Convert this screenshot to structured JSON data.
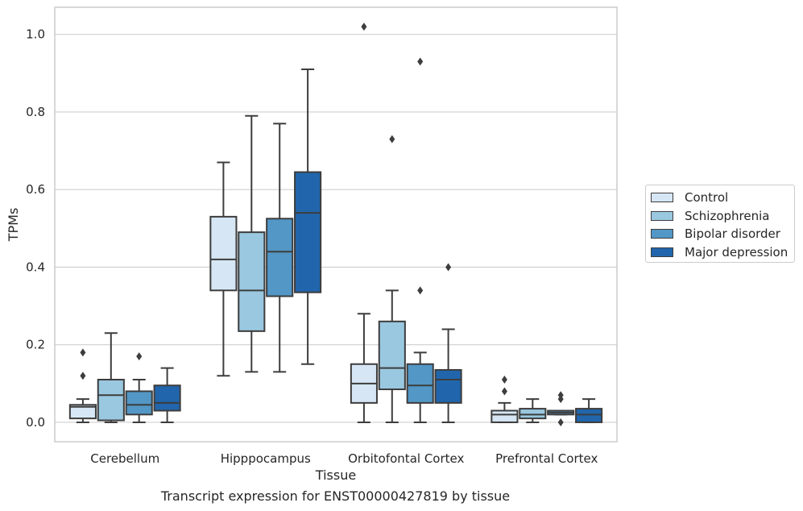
{
  "chart_data": {
    "type": "box",
    "caption": "Transcript expression for ENST00000427819 by tissue",
    "xlabel": "Tissue",
    "ylabel": "TPMs",
    "ylim": [
      -0.05,
      1.07
    ],
    "yticks": [
      0.0,
      0.2,
      0.4,
      0.6,
      0.8,
      1.0
    ],
    "ytick_labels": [
      "0.0",
      "0.2",
      "0.4",
      "0.6",
      "0.8",
      "1.0"
    ],
    "grid": true,
    "legend_position": "right",
    "categories": [
      "Cerebellum",
      "Hipppocampus",
      "Orbitofontal Cortex",
      "Prefrontal Cortex"
    ],
    "series": [
      {
        "name": "Control",
        "color": "#d6e6f4",
        "boxes": [
          {
            "whislo": 0.0,
            "q1": 0.01,
            "med": 0.04,
            "q3": 0.045,
            "whishi": 0.06,
            "fliers": [
              0.12,
              0.18
            ]
          },
          {
            "whislo": 0.12,
            "q1": 0.34,
            "med": 0.42,
            "q3": 0.53,
            "whishi": 0.67,
            "fliers": []
          },
          {
            "whislo": 0.0,
            "q1": 0.05,
            "med": 0.1,
            "q3": 0.15,
            "whishi": 0.28,
            "fliers": [
              1.02
            ]
          },
          {
            "whislo": 0.0,
            "q1": 0.0,
            "med": 0.02,
            "q3": 0.03,
            "whishi": 0.05,
            "fliers": [
              0.08,
              0.11
            ]
          }
        ]
      },
      {
        "name": "Schizophrenia",
        "color": "#9ac8e0",
        "boxes": [
          {
            "whislo": 0.0,
            "q1": 0.005,
            "med": 0.07,
            "q3": 0.11,
            "whishi": 0.23,
            "fliers": []
          },
          {
            "whislo": 0.13,
            "q1": 0.235,
            "med": 0.34,
            "q3": 0.49,
            "whishi": 0.79,
            "fliers": []
          },
          {
            "whislo": 0.0,
            "q1": 0.085,
            "med": 0.14,
            "q3": 0.26,
            "whishi": 0.34,
            "fliers": [
              0.73
            ]
          },
          {
            "whislo": 0.0,
            "q1": 0.01,
            "med": 0.02,
            "q3": 0.035,
            "whishi": 0.06,
            "fliers": []
          }
        ]
      },
      {
        "name": "Bipolar disorder",
        "color": "#5297c6",
        "boxes": [
          {
            "whislo": 0.0,
            "q1": 0.02,
            "med": 0.045,
            "q3": 0.08,
            "whishi": 0.11,
            "fliers": [
              0.17
            ]
          },
          {
            "whislo": 0.13,
            "q1": 0.325,
            "med": 0.44,
            "q3": 0.525,
            "whishi": 0.77,
            "fliers": []
          },
          {
            "whislo": 0.0,
            "q1": 0.05,
            "med": 0.095,
            "q3": 0.15,
            "whishi": 0.18,
            "fliers": [
              0.34,
              0.93
            ]
          },
          {
            "whislo": 0.02,
            "q1": 0.02,
            "med": 0.025,
            "q3": 0.03,
            "whishi": 0.03,
            "fliers": [
              0.0,
              0.06,
              0.07
            ]
          }
        ]
      },
      {
        "name": "Major depression",
        "color": "#2166ac",
        "boxes": [
          {
            "whislo": 0.0,
            "q1": 0.03,
            "med": 0.05,
            "q3": 0.095,
            "whishi": 0.14,
            "fliers": []
          },
          {
            "whislo": 0.15,
            "q1": 0.335,
            "med": 0.54,
            "q3": 0.645,
            "whishi": 0.91,
            "fliers": []
          },
          {
            "whislo": 0.0,
            "q1": 0.05,
            "med": 0.11,
            "q3": 0.135,
            "whishi": 0.24,
            "fliers": [
              0.4
            ]
          },
          {
            "whislo": 0.0,
            "q1": 0.0,
            "med": 0.02,
            "q3": 0.035,
            "whishi": 0.06,
            "fliers": []
          }
        ]
      }
    ]
  }
}
